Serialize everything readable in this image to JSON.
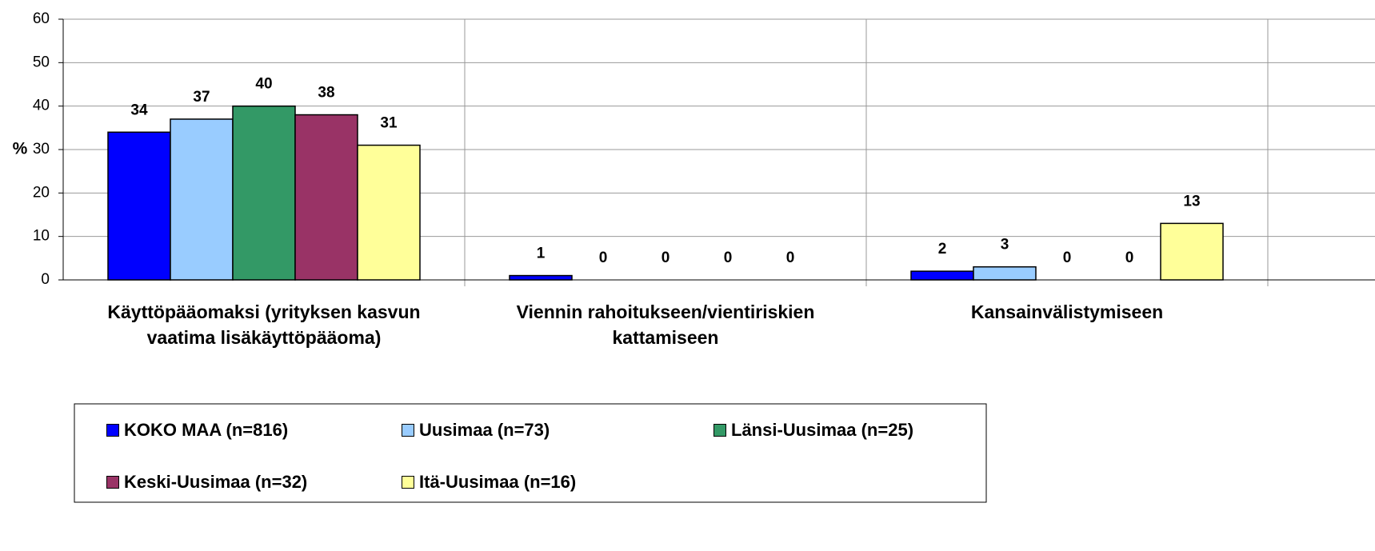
{
  "chart_data": {
    "type": "bar",
    "y_label": "%",
    "categories": [
      "Käyttöpääomaksi (yrityksen kasvun vaatima lisäkäyttöpääoma)",
      "Viennin rahoitukseen/vientiriskien kattamiseen",
      "Kansainvälistymiseen"
    ],
    "series": [
      {
        "name": "KOKO MAA (n=816)",
        "color": "#0000ff",
        "values": [
          34,
          1,
          2
        ]
      },
      {
        "name": "Uusimaa (n=73)",
        "color": "#99ccff",
        "values": [
          37,
          0,
          3
        ]
      },
      {
        "name": "Länsi-Uusimaa (n=25)",
        "color": "#339966",
        "values": [
          40,
          0,
          0
        ]
      },
      {
        "name": "Keski-Uusimaa (n=32)",
        "color": "#993366",
        "values": [
          38,
          0,
          0
        ]
      },
      {
        "name": "Itä-Uusimaa (n=16)",
        "color": "#ffff99",
        "values": [
          31,
          0,
          13
        ]
      }
    ],
    "ylim": [
      0,
      60
    ],
    "yticks": [
      0,
      10,
      20,
      30,
      40,
      50,
      60
    ],
    "grid": true,
    "legend": "bottom"
  }
}
